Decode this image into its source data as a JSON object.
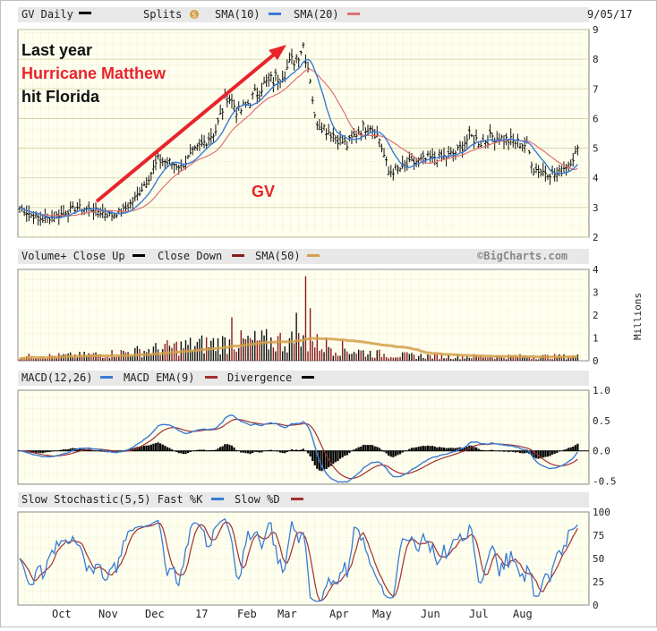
{
  "chart_data": {
    "type": "stock-chart",
    "date_label": "9/05/17",
    "x_months": [
      "Oct",
      "Nov",
      "Dec",
      "17",
      "Feb",
      "Mar",
      "Apr",
      "May",
      "Jun",
      "Jul",
      "Aug"
    ],
    "price_panel": {
      "ticker_label": "GV Daily",
      "legend": [
        "Splits",
        "SMA(10)",
        "SMA(20)"
      ],
      "legend_colors": [
        "#000000",
        "#3a7bd5",
        "#e07070"
      ],
      "split_icon_text": "S",
      "y_ticks": [
        2,
        3,
        4,
        5,
        6,
        7,
        8,
        9
      ],
      "ylim": [
        2,
        9
      ],
      "watermark": "GV",
      "annotation": {
        "line1": "Last year",
        "line2": "Hurricane Matthew",
        "line3": "hit Florida",
        "color_highlight": "#e8242a"
      },
      "close_series": [
        {
          "x": 0,
          "y": 3.0
        },
        {
          "x": 5,
          "y": 2.75
        },
        {
          "x": 10,
          "y": 2.6
        },
        {
          "x": 15,
          "y": 2.7
        },
        {
          "x": 20,
          "y": 2.85
        },
        {
          "x": 25,
          "y": 3.0
        },
        {
          "x": 30,
          "y": 2.95
        },
        {
          "x": 35,
          "y": 2.85
        },
        {
          "x": 40,
          "y": 2.75
        },
        {
          "x": 45,
          "y": 2.9
        },
        {
          "x": 50,
          "y": 3.3
        },
        {
          "x": 55,
          "y": 3.9
        },
        {
          "x": 60,
          "y": 4.6
        },
        {
          "x": 65,
          "y": 4.5
        },
        {
          "x": 70,
          "y": 4.4
        },
        {
          "x": 75,
          "y": 4.8
        },
        {
          "x": 80,
          "y": 5.2
        },
        {
          "x": 85,
          "y": 5.6
        },
        {
          "x": 90,
          "y": 6.8
        },
        {
          "x": 95,
          "y": 6.2
        },
        {
          "x": 100,
          "y": 6.6
        },
        {
          "x": 105,
          "y": 7.1
        },
        {
          "x": 110,
          "y": 7.3
        },
        {
          "x": 115,
          "y": 7.6
        },
        {
          "x": 120,
          "y": 8.1
        },
        {
          "x": 123,
          "y": 8.5
        },
        {
          "x": 126,
          "y": 7.4
        },
        {
          "x": 128,
          "y": 6.0
        },
        {
          "x": 132,
          "y": 5.7
        },
        {
          "x": 137,
          "y": 5.4
        },
        {
          "x": 142,
          "y": 5.1
        },
        {
          "x": 147,
          "y": 5.6
        },
        {
          "x": 152,
          "y": 5.8
        },
        {
          "x": 156,
          "y": 5.3
        },
        {
          "x": 160,
          "y": 4.2
        },
        {
          "x": 165,
          "y": 4.3
        },
        {
          "x": 170,
          "y": 4.5
        },
        {
          "x": 175,
          "y": 4.6
        },
        {
          "x": 180,
          "y": 4.7
        },
        {
          "x": 185,
          "y": 4.7
        },
        {
          "x": 190,
          "y": 4.9
        },
        {
          "x": 195,
          "y": 5.4
        },
        {
          "x": 200,
          "y": 5.2
        },
        {
          "x": 205,
          "y": 5.4
        },
        {
          "x": 210,
          "y": 5.3
        },
        {
          "x": 215,
          "y": 5.2
        },
        {
          "x": 220,
          "y": 5.1
        },
        {
          "x": 223,
          "y": 4.3
        },
        {
          "x": 228,
          "y": 4.2
        },
        {
          "x": 233,
          "y": 4.1
        },
        {
          "x": 238,
          "y": 4.5
        },
        {
          "x": 242,
          "y": 4.9
        }
      ]
    },
    "volume_panel": {
      "legend": [
        "Volume+ Close Up",
        "Close Down",
        "SMA(50)"
      ],
      "legend_colors": [
        "#000000",
        "#8b1a1a",
        "#d4a04a"
      ],
      "credit": "©BigCharts.com",
      "y_ticks": [
        0,
        1,
        2,
        3,
        4
      ],
      "unit": "Millions",
      "ylim": [
        0,
        4
      ]
    },
    "macd_panel": {
      "legend": [
        "MACD(12,26)",
        "MACD EMA(9)",
        "Divergence"
      ],
      "legend_colors": [
        "#3a7bd5",
        "#a03030",
        "#000000"
      ],
      "y_ticks": [
        "1.0",
        "0.5",
        "0.0",
        "-0.5"
      ],
      "ylim": [
        -0.55,
        1.0
      ]
    },
    "stochastic_panel": {
      "legend": [
        "Slow Stochastic(5,5) Fast %K",
        "Slow %D"
      ],
      "legend_colors": [
        "#3a7bd5",
        "#a03030"
      ],
      "y_ticks": [
        0,
        25,
        50,
        75,
        100
      ],
      "ylim": [
        0,
        100
      ]
    }
  }
}
